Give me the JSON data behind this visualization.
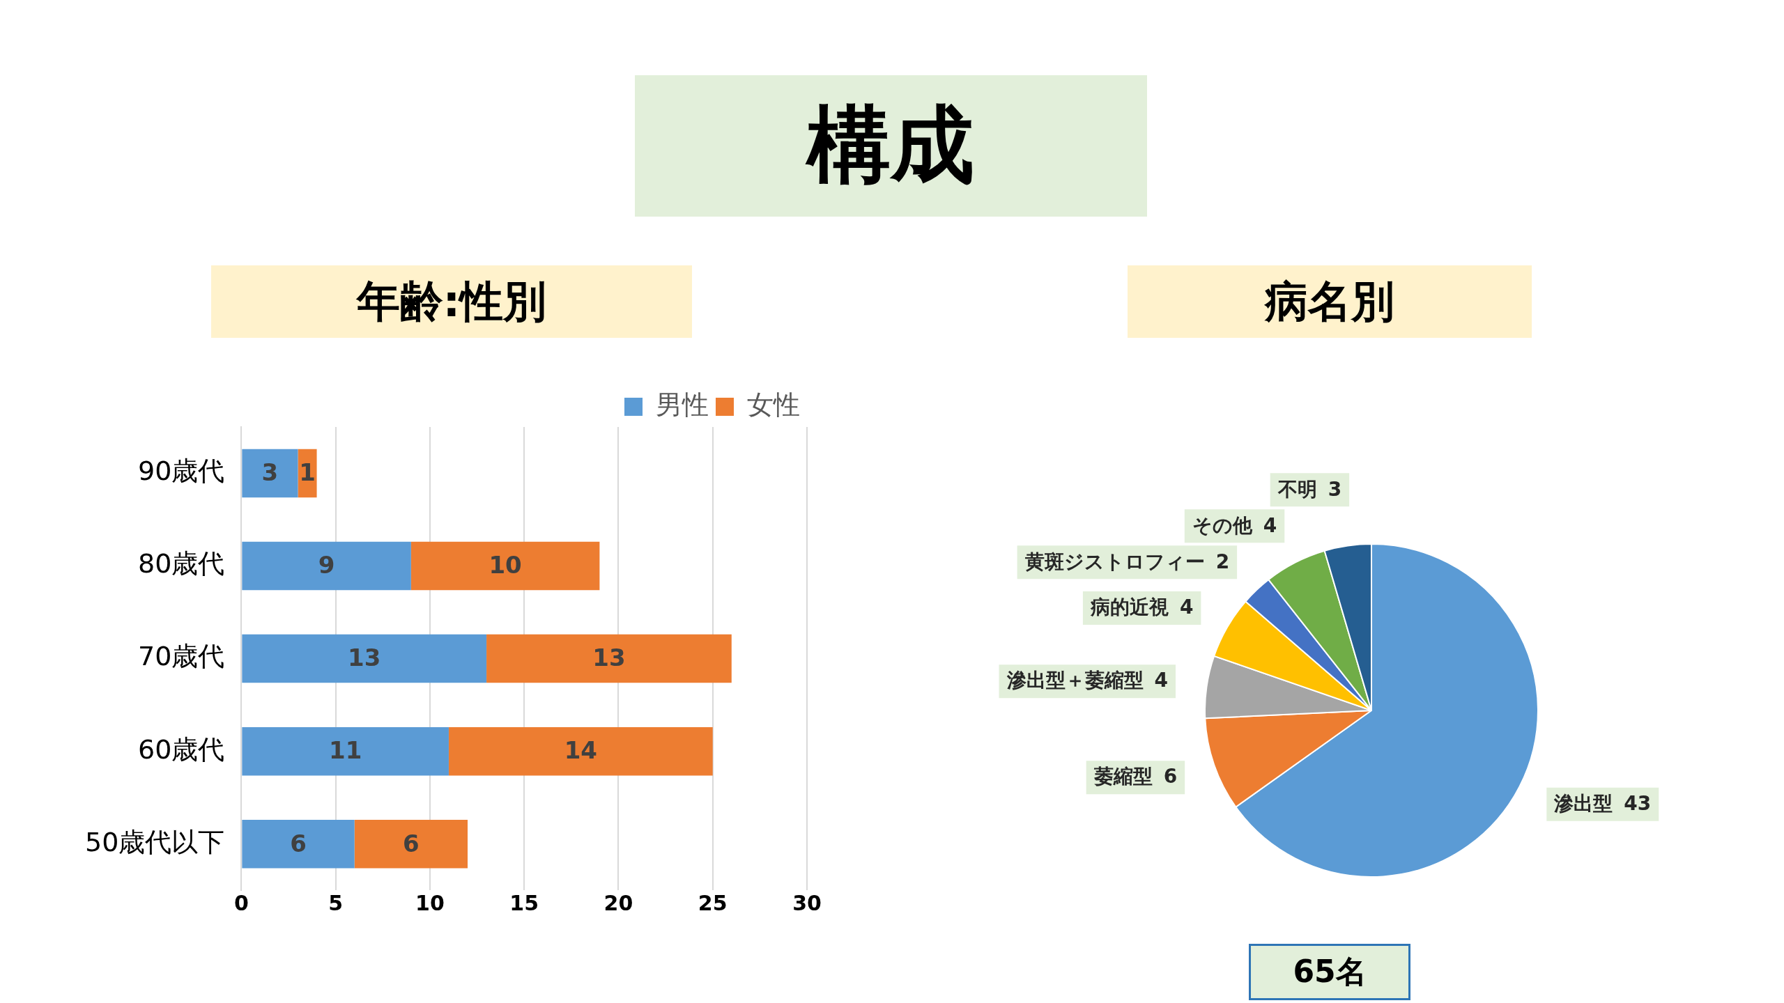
{
  "chart_data": [
    {
      "type": "bar",
      "title": "年齢:性別",
      "annotations": [
        "構成"
      ],
      "orientation": "horizontal",
      "stacked": true,
      "categories": [
        "90歳代",
        "80歳代",
        "70歳代",
        "60歳代",
        "50歳代以下"
      ],
      "series": [
        {
          "name": "男性",
          "color": "#5b9bd5",
          "values": [
            3,
            9,
            13,
            11,
            6
          ]
        },
        {
          "name": "女性",
          "color": "#ed7d31",
          "values": [
            1,
            10,
            13,
            14,
            6
          ]
        }
      ],
      "xlim": [
        0,
        30
      ],
      "xticks": [
        0,
        5,
        10,
        15,
        20,
        25,
        30
      ],
      "grid": "x",
      "legend": "top right",
      "data_labels": true
    },
    {
      "type": "pie",
      "title": "病名別",
      "annotations": [
        "65名"
      ],
      "categories": [
        "滲出型",
        "萎縮型",
        "滲出型＋萎縮型",
        "病的近視",
        "黄斑ジストロフィー",
        "その他",
        "不明"
      ],
      "values": [
        43,
        6,
        4,
        4,
        2,
        4,
        3
      ],
      "colors": [
        "#5b9bd5",
        "#ed7d31",
        "#a5a5a5",
        "#ffc000",
        "#4472c4",
        "#70ad47",
        "#255e91"
      ],
      "data_labels": true
    }
  ]
}
